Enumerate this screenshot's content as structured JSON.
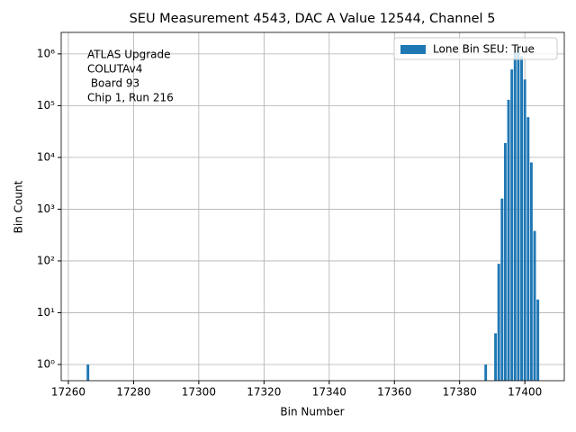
{
  "chart_data": {
    "type": "bar",
    "title": "SEU Measurement 4543, DAC A Value 12544, Channel 5",
    "x_label": "Bin Number",
    "y_label": "Bin Count",
    "annotation": [
      "ATLAS Upgrade",
      "COLUTAv4",
      " Board 93",
      "Chip 1, Run 216"
    ],
    "x": [
      17266,
      17388,
      17391,
      17392,
      17393,
      17394,
      17395,
      17396,
      17397,
      17398,
      17399,
      17400,
      17401,
      17402,
      17403,
      17404
    ],
    "series": [
      {
        "name": "Lone Bin SEU: True",
        "color": "#1f77b4",
        "values": [
          1,
          1,
          4,
          88,
          1600,
          19000,
          130000,
          500000,
          1100000,
          1300000,
          900000,
          320000,
          60000,
          8000,
          380,
          18
        ]
      }
    ],
    "xlim": [
      17257.8,
      17412.1
    ],
    "ylim": [
      0.486,
      2600000
    ],
    "log_y": true,
    "xticks": [
      17260,
      17280,
      17300,
      17320,
      17340,
      17360,
      17380,
      17400
    ],
    "yticks": [
      {
        "value": 1,
        "label": "10⁰"
      },
      {
        "value": 10,
        "label": "10¹"
      },
      {
        "value": 100,
        "label": "10²"
      },
      {
        "value": 1000,
        "label": "10³"
      },
      {
        "value": 10000,
        "label": "10⁴"
      },
      {
        "value": 100000,
        "label": "10⁵"
      },
      {
        "value": 1000000,
        "label": "10⁶"
      }
    ],
    "grid": true,
    "legend": "upper right"
  }
}
